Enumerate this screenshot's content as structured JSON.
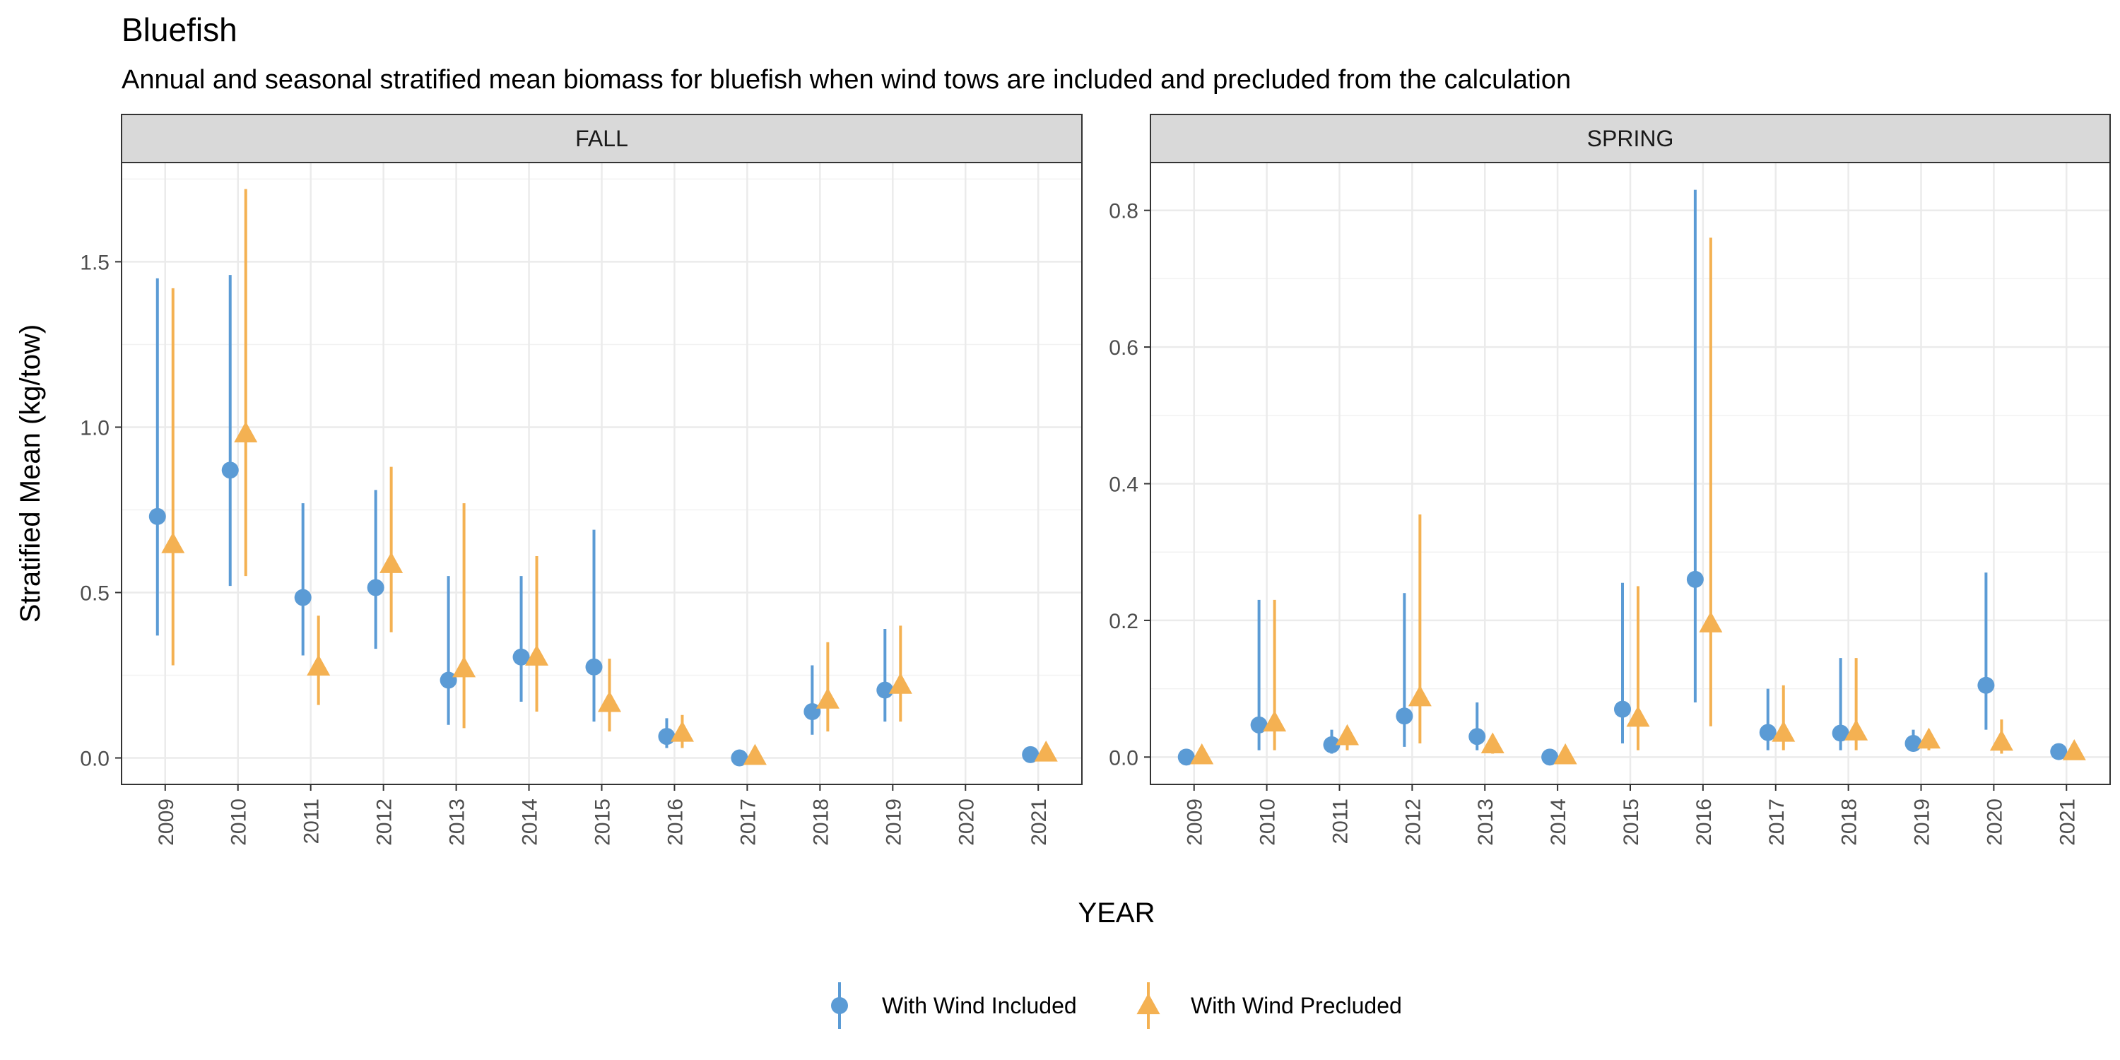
{
  "chart_data": {
    "type": "scatter",
    "title": "Bluefish",
    "subtitle": "Annual and seasonal stratified mean biomass for bluefish when wind tows are included and precluded from the calculation",
    "xlabel": "YEAR",
    "ylabel": "Stratified Mean (kg/tow)",
    "legend_position": "bottom",
    "grid": true,
    "colors": {
      "included": "#5B9BD5",
      "precluded": "#F4B152"
    },
    "series_labels": [
      "With Wind Included",
      "With Wind Precluded"
    ],
    "x_ticks": [
      "2009",
      "2010",
      "2011",
      "2012",
      "2013",
      "2014",
      "2015",
      "2016",
      "2017",
      "2018",
      "2019",
      "2020",
      "2021"
    ],
    "panels": [
      {
        "name": "FALL",
        "ylim": [
          -0.08,
          1.8
        ],
        "y_ticks": [
          "0.0",
          "0.5",
          "1.0",
          "1.5"
        ],
        "series": [
          {
            "name": "With Wind Included",
            "points": [
              {
                "x": 2009,
                "y": 0.73,
                "lo": 0.37,
                "hi": 1.45
              },
              {
                "x": 2010,
                "y": 0.87,
                "lo": 0.52,
                "hi": 1.46
              },
              {
                "x": 2011,
                "y": 0.485,
                "lo": 0.31,
                "hi": 0.77
              },
              {
                "x": 2012,
                "y": 0.515,
                "lo": 0.33,
                "hi": 0.81
              },
              {
                "x": 2013,
                "y": 0.235,
                "lo": 0.1,
                "hi": 0.55
              },
              {
                "x": 2014,
                "y": 0.305,
                "lo": 0.17,
                "hi": 0.55
              },
              {
                "x": 2015,
                "y": 0.275,
                "lo": 0.11,
                "hi": 0.69
              },
              {
                "x": 2016,
                "y": 0.065,
                "lo": 0.03,
                "hi": 0.12
              },
              {
                "x": 2017,
                "y": 0.0,
                "lo": 0.0,
                "hi": 0.0
              },
              {
                "x": 2018,
                "y": 0.14,
                "lo": 0.07,
                "hi": 0.28
              },
              {
                "x": 2019,
                "y": 0.205,
                "lo": 0.11,
                "hi": 0.39
              },
              {
                "x": 2021,
                "y": 0.01,
                "lo": 0.0,
                "hi": 0.01
              }
            ]
          },
          {
            "name": "With Wind Precluded",
            "points": [
              {
                "x": 2009,
                "y": 0.645,
                "lo": 0.28,
                "hi": 1.42
              },
              {
                "x": 2010,
                "y": 0.98,
                "lo": 0.55,
                "hi": 1.72
              },
              {
                "x": 2011,
                "y": 0.275,
                "lo": 0.16,
                "hi": 0.43
              },
              {
                "x": 2012,
                "y": 0.585,
                "lo": 0.38,
                "hi": 0.88
              },
              {
                "x": 2013,
                "y": 0.27,
                "lo": 0.09,
                "hi": 0.77
              },
              {
                "x": 2014,
                "y": 0.305,
                "lo": 0.14,
                "hi": 0.61
              },
              {
                "x": 2015,
                "y": 0.165,
                "lo": 0.08,
                "hi": 0.3
              },
              {
                "x": 2016,
                "y": 0.075,
                "lo": 0.03,
                "hi": 0.13
              },
              {
                "x": 2017,
                "y": 0.005,
                "lo": 0.0,
                "hi": 0.01
              },
              {
                "x": 2018,
                "y": 0.175,
                "lo": 0.08,
                "hi": 0.35
              },
              {
                "x": 2019,
                "y": 0.22,
                "lo": 0.11,
                "hi": 0.4
              },
              {
                "x": 2021,
                "y": 0.015,
                "lo": 0.0,
                "hi": 0.02
              }
            ]
          }
        ]
      },
      {
        "name": "SPRING",
        "ylim": [
          -0.04,
          0.87
        ],
        "y_ticks": [
          "0.0",
          "0.2",
          "0.4",
          "0.6",
          "0.8"
        ],
        "series": [
          {
            "name": "With Wind Included",
            "points": [
              {
                "x": 2009,
                "y": 0.0,
                "lo": 0.0,
                "hi": 0.0
              },
              {
                "x": 2010,
                "y": 0.047,
                "lo": 0.01,
                "hi": 0.23
              },
              {
                "x": 2011,
                "y": 0.018,
                "lo": 0.005,
                "hi": 0.04
              },
              {
                "x": 2012,
                "y": 0.06,
                "lo": 0.015,
                "hi": 0.24
              },
              {
                "x": 2013,
                "y": 0.03,
                "lo": 0.01,
                "hi": 0.08
              },
              {
                "x": 2014,
                "y": 0.0,
                "lo": 0.0,
                "hi": 0.0
              },
              {
                "x": 2015,
                "y": 0.07,
                "lo": 0.02,
                "hi": 0.255
              },
              {
                "x": 2016,
                "y": 0.26,
                "lo": 0.08,
                "hi": 0.83
              },
              {
                "x": 2017,
                "y": 0.036,
                "lo": 0.01,
                "hi": 0.1
              },
              {
                "x": 2018,
                "y": 0.035,
                "lo": 0.01,
                "hi": 0.145
              },
              {
                "x": 2019,
                "y": 0.02,
                "lo": 0.01,
                "hi": 0.04
              },
              {
                "x": 2020,
                "y": 0.105,
                "lo": 0.04,
                "hi": 0.27
              },
              {
                "x": 2021,
                "y": 0.008,
                "lo": 0.0,
                "hi": 0.015
              }
            ]
          },
          {
            "name": "With Wind Precluded",
            "points": [
              {
                "x": 2009,
                "y": 0.002,
                "lo": 0.0,
                "hi": 0.005
              },
              {
                "x": 2010,
                "y": 0.05,
                "lo": 0.01,
                "hi": 0.23
              },
              {
                "x": 2011,
                "y": 0.03,
                "lo": 0.01,
                "hi": 0.04
              },
              {
                "x": 2012,
                "y": 0.087,
                "lo": 0.02,
                "hi": 0.355
              },
              {
                "x": 2013,
                "y": 0.018,
                "lo": 0.005,
                "hi": 0.03
              },
              {
                "x": 2014,
                "y": 0.002,
                "lo": 0.0,
                "hi": 0.005
              },
              {
                "x": 2015,
                "y": 0.057,
                "lo": 0.01,
                "hi": 0.25
              },
              {
                "x": 2016,
                "y": 0.195,
                "lo": 0.045,
                "hi": 0.76
              },
              {
                "x": 2017,
                "y": 0.035,
                "lo": 0.01,
                "hi": 0.105
              },
              {
                "x": 2018,
                "y": 0.037,
                "lo": 0.01,
                "hi": 0.145
              },
              {
                "x": 2019,
                "y": 0.025,
                "lo": 0.01,
                "hi": 0.04
              },
              {
                "x": 2020,
                "y": 0.022,
                "lo": 0.005,
                "hi": 0.055
              },
              {
                "x": 2021,
                "y": 0.008,
                "lo": 0.0,
                "hi": 0.015
              }
            ]
          }
        ]
      }
    ]
  }
}
